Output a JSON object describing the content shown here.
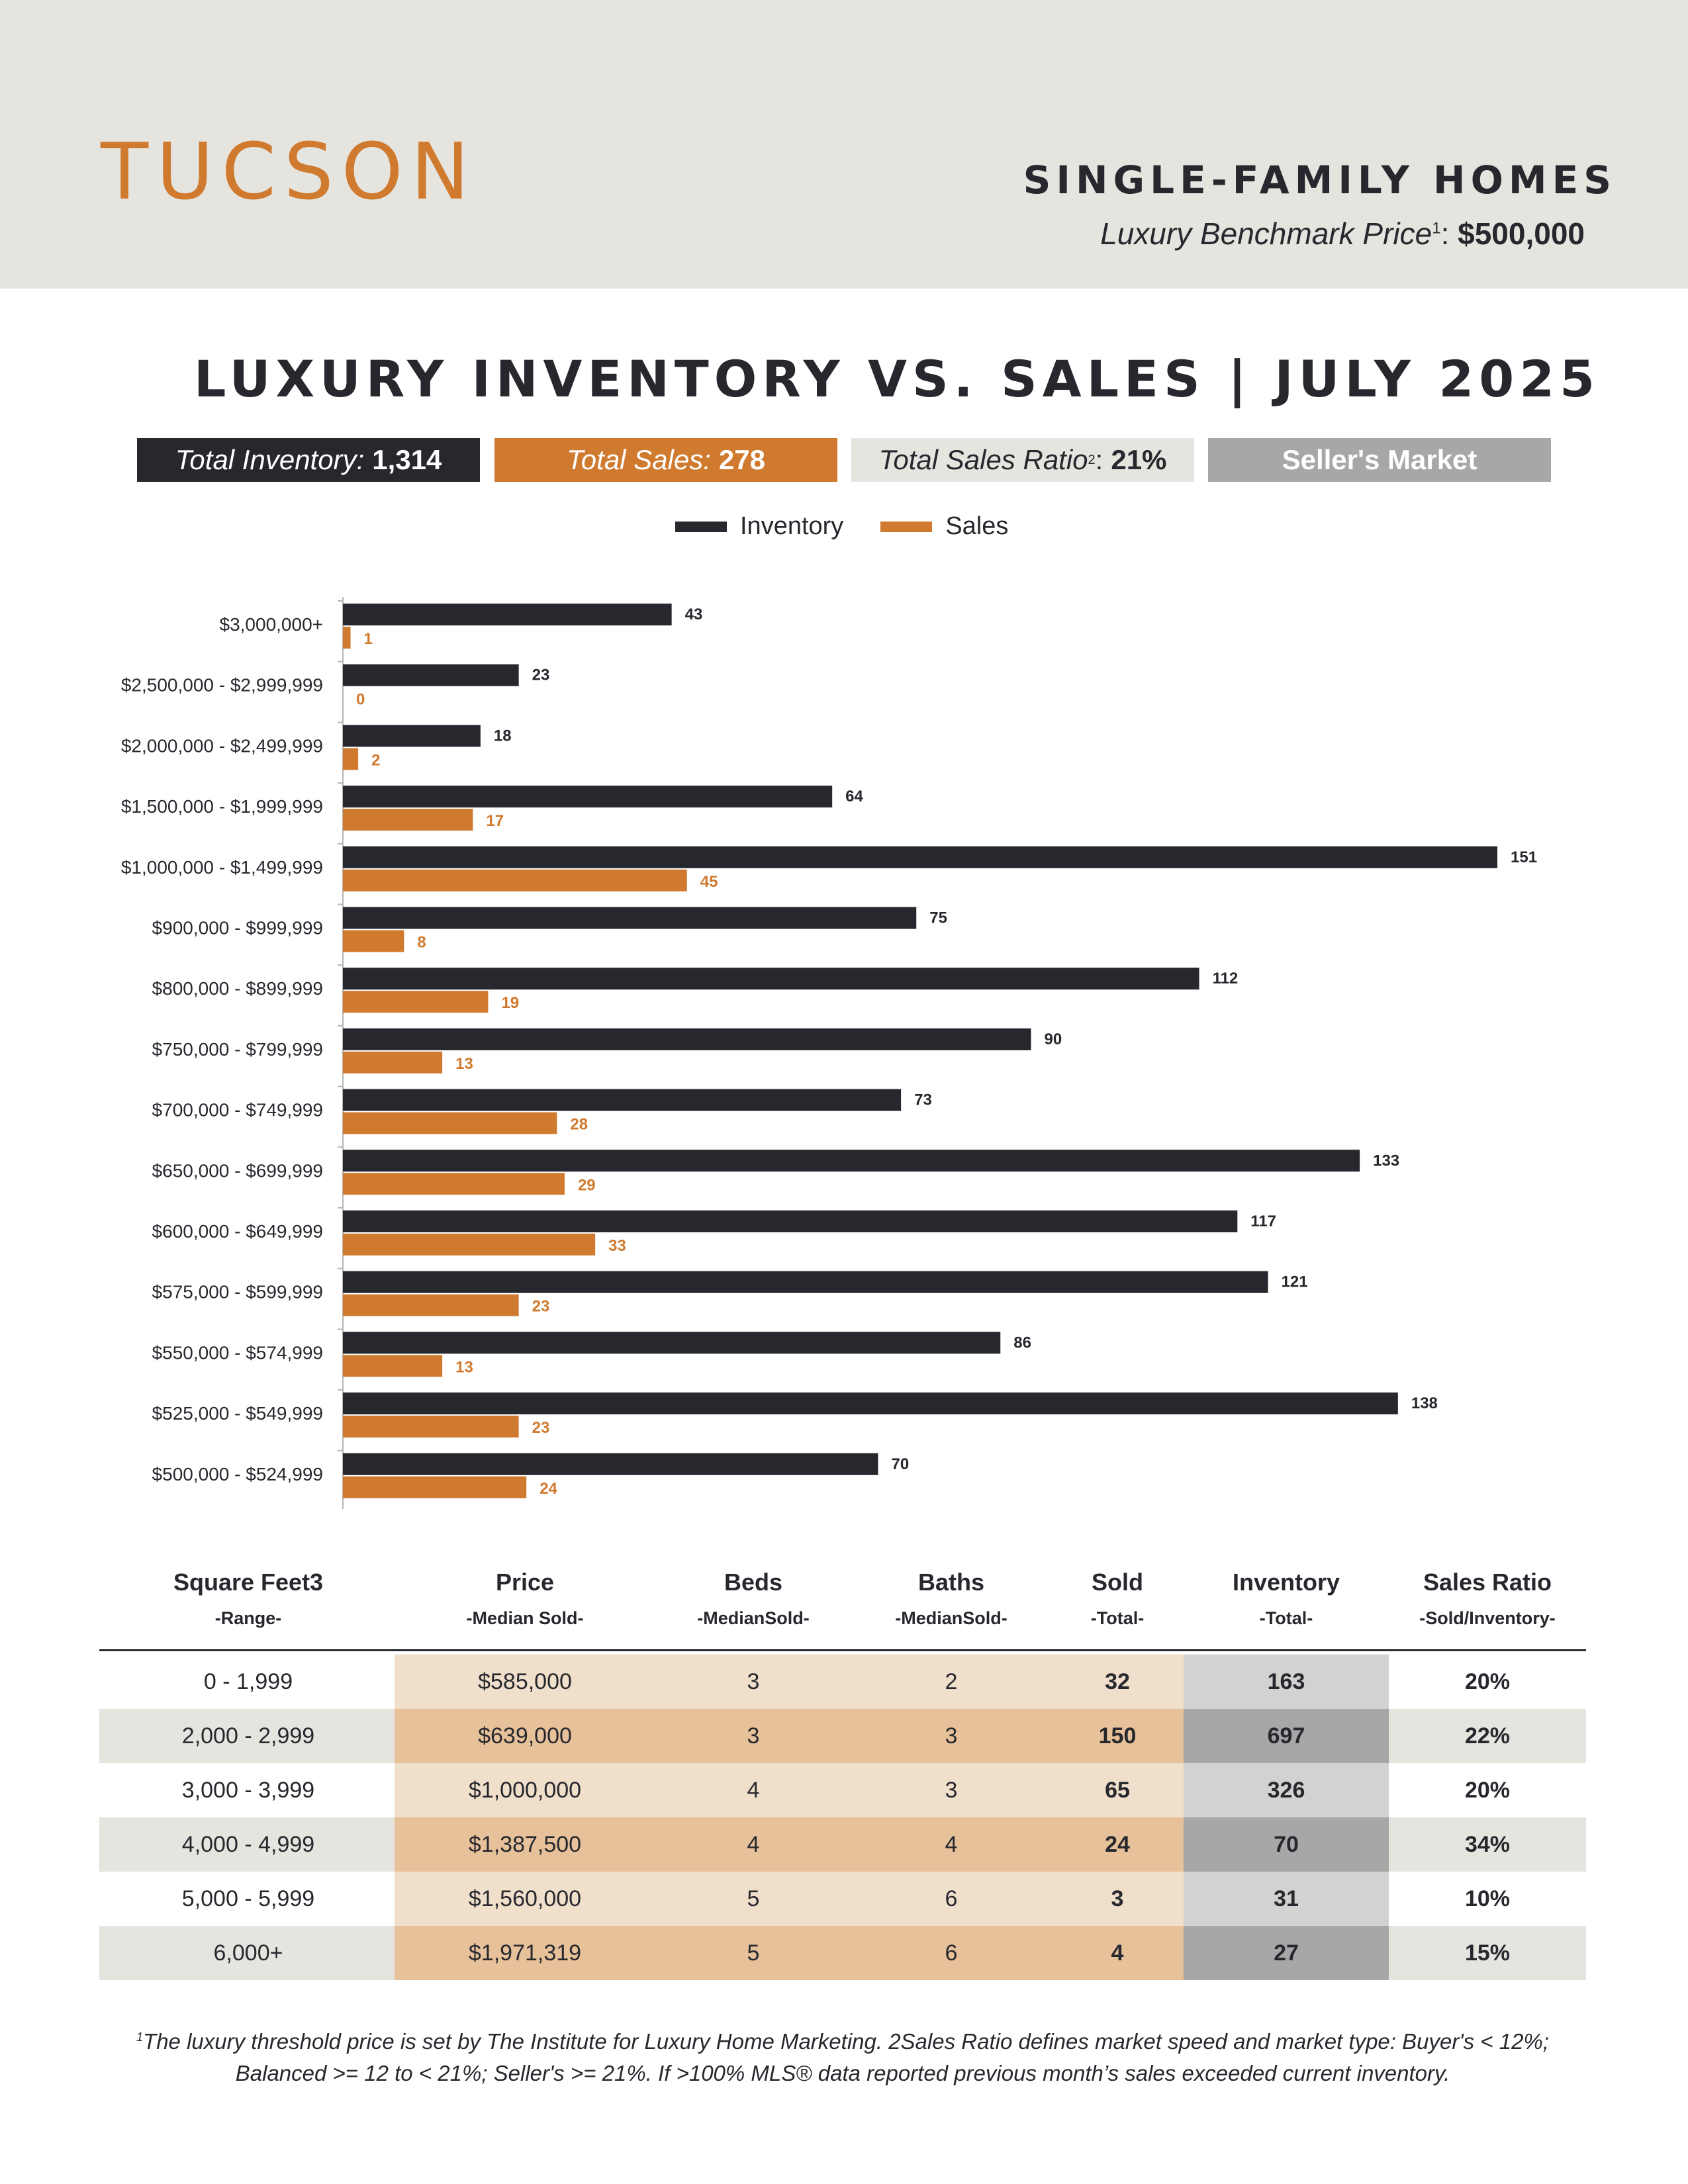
{
  "header": {
    "city": "TUCSON",
    "property_type": "SINGLE-FAMILY HOMES",
    "benchmark_label": "Luxury Benchmark Price",
    "benchmark_sup": "1",
    "benchmark_value": "$500,000"
  },
  "title": "LUXURY INVENTORY VS. SALES | JULY 2025",
  "stats": {
    "inventory_label": "Total Inventory:",
    "inventory_value": "1,314",
    "sales_label": "Total Sales:",
    "sales_value": "278",
    "ratio_label": "Total Sales Ratio",
    "ratio_sup": "2",
    "ratio_value": "21%",
    "market": "Seller's Market"
  },
  "colors": {
    "inventory": "#26282e",
    "sales": "#cf7a2e",
    "header_bg": "#e6e4df"
  },
  "chart_data": {
    "type": "bar",
    "orientation": "horizontal",
    "categories": [
      "$3,000,000+",
      "$2,500,000 - $2,999,999",
      "$2,000,000 - $2,499,999",
      "$1,500,000 - $1,999,999",
      "$1,000,000 - $1,499,999",
      "$900,000 - $999,999",
      "$800,000 - $899,999",
      "$750,000 - $799,999",
      "$700,000 - $749,999",
      "$650,000 - $699,999",
      "$600,000 - $649,999",
      "$575,000 - $599,999",
      "$550,000 - $574,999",
      "$525,000 - $549,999",
      "$500,000 - $524,999"
    ],
    "series": [
      {
        "name": "Inventory",
        "values": [
          43,
          23,
          18,
          64,
          151,
          75,
          112,
          90,
          73,
          133,
          117,
          121,
          86,
          138,
          70
        ]
      },
      {
        "name": "Sales",
        "values": [
          1,
          0,
          2,
          17,
          45,
          8,
          19,
          13,
          28,
          29,
          33,
          23,
          13,
          23,
          24
        ]
      }
    ],
    "xlim": [
      0,
      160
    ],
    "legend_position": "top-center",
    "grid": false
  },
  "table": {
    "headers": [
      {
        "title": "Square Feet3",
        "sub": "-Range-"
      },
      {
        "title": "Price",
        "sub": "-Median Sold-"
      },
      {
        "title": "Beds",
        "sub": "-MedianSold-"
      },
      {
        "title": "Baths",
        "sub": "-MedianSold-"
      },
      {
        "title": "Sold",
        "sub": "-Total-"
      },
      {
        "title": "Inventory",
        "sub": "-Total-"
      },
      {
        "title": "Sales Ratio",
        "sub": "-Sold/Inventory-"
      }
    ],
    "rows": [
      [
        "0 - 1,999",
        "$585,000",
        "3",
        "2",
        "32",
        "163",
        "20%"
      ],
      [
        "2,000 - 2,999",
        "$639,000",
        "3",
        "3",
        "150",
        "697",
        "22%"
      ],
      [
        "3,000 - 3,999",
        "$1,000,000",
        "4",
        "3",
        "65",
        "326",
        "20%"
      ],
      [
        "4,000 - 4,999",
        "$1,387,500",
        "4",
        "4",
        "24",
        "70",
        "34%"
      ],
      [
        "5,000 - 5,999",
        "$1,560,000",
        "5",
        "6",
        "3",
        "31",
        "10%"
      ],
      [
        "6,000+",
        "$1,971,319",
        "5",
        "6",
        "4",
        "27",
        "15%"
      ]
    ]
  },
  "footnote": {
    "sup": "1",
    "line1": "The luxury threshold price is set by The Institute for Luxury Home Marketing. 2Sales Ratio defines market speed and market type: Buyer's < 12%;",
    "line2": "Balanced >= 12 to < 21%; Seller's >= 21%. If >100% MLS® data reported previous month’s sales exceeded current inventory."
  }
}
